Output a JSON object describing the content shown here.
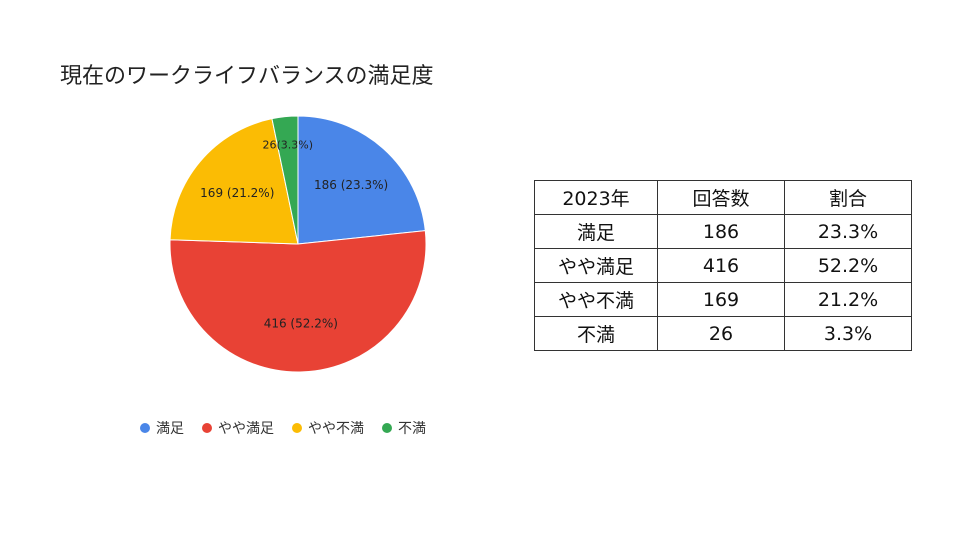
{
  "chart_data": {
    "type": "pie",
    "title": "現在のワークライフバランスの満足度",
    "categories": [
      "満足",
      "やや満足",
      "やや不満",
      "不満"
    ],
    "values": [
      186,
      416,
      169,
      26
    ],
    "percentages": [
      23.3,
      52.2,
      21.2,
      3.3
    ],
    "slice_labels": [
      "186 (23.3%)",
      "416 (52.2%)",
      "169 (21.2%)",
      "26(3.3%)"
    ],
    "colors": [
      "#4a86e8",
      "#e84235",
      "#fbbc04",
      "#34a853"
    ],
    "legend_position": "bottom"
  },
  "table": {
    "headers": [
      "2023年",
      "回答数",
      "割合"
    ],
    "rows": [
      [
        "満足",
        "186",
        "23.3%"
      ],
      [
        "やや満足",
        "416",
        "52.2%"
      ],
      [
        "やや不満",
        "169",
        "21.2%"
      ],
      [
        "不満",
        "26",
        "3.3%"
      ]
    ]
  }
}
